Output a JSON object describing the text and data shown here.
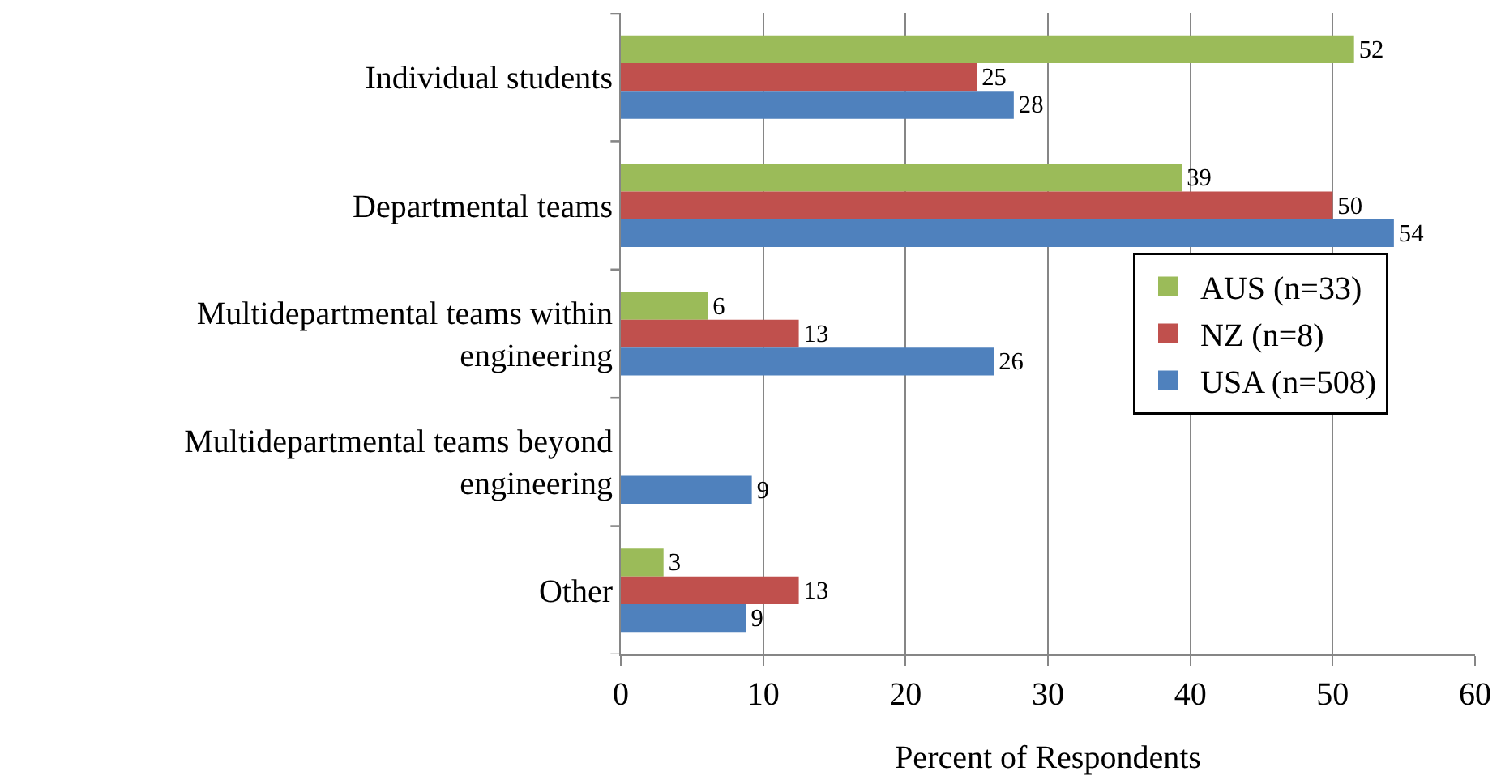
{
  "chart_data": {
    "type": "bar",
    "orientation": "horizontal",
    "xlabel": "Percent of Respondents",
    "categories": [
      "Individual students",
      "Departmental teams",
      "Multidepartmental teams within engineering",
      "Multidepartmental teams beyond engineering",
      "Other"
    ],
    "series": [
      {
        "name": "AUS (n=33)",
        "color": "#9bbb59",
        "values": [
          51.5,
          39.4,
          6.1,
          null,
          3.0
        ],
        "value_labels": [
          "52",
          "39",
          "6",
          null,
          "3"
        ]
      },
      {
        "name": "NZ (n=8)",
        "color": "#c0504d",
        "values": [
          25,
          50,
          12.5,
          null,
          12.5
        ],
        "value_labels": [
          "25",
          "50",
          "13",
          null,
          "13"
        ]
      },
      {
        "name": "USA (n=508)",
        "color": "#4f81bd",
        "values": [
          27.6,
          54.3,
          26.2,
          9.2,
          8.8
        ],
        "value_labels": [
          "28",
          "54",
          "26",
          "9",
          "9"
        ]
      }
    ],
    "xlim": [
      0,
      60
    ],
    "xticks": [
      0,
      10,
      20,
      30,
      40,
      50,
      60
    ],
    "grid": "x",
    "legend": "right"
  }
}
